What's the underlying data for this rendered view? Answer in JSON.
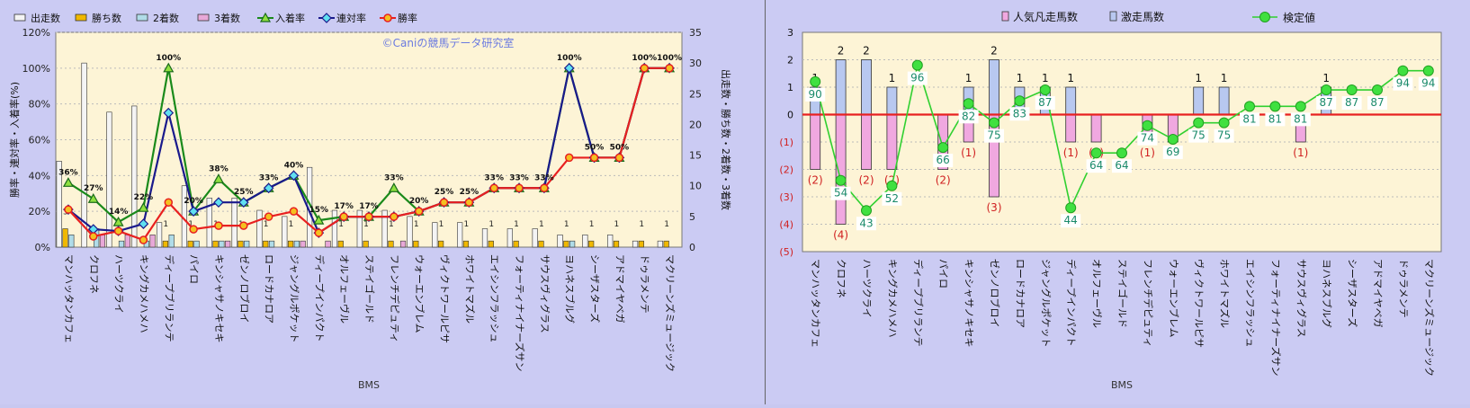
{
  "chart_data": [
    {
      "type": "bar+line",
      "title": "",
      "watermark": "©Caniの競馬データ研究室",
      "xlabel": "BMS",
      "ylabel_left": "勝率・連対率・入着率(%)",
      "ylabel_right": "出走数・勝ち数・2着数・3着数",
      "ylim_left": [
        0,
        120
      ],
      "ylim_right": [
        0,
        35
      ],
      "yticks_left": [
        "0%",
        "20%",
        "40%",
        "60%",
        "80%",
        "100%",
        "120%"
      ],
      "yticks_right": [
        "0",
        "5",
        "10",
        "15",
        "20",
        "25",
        "30",
        "35"
      ],
      "legend_position": "top",
      "categories": [
        "マンハッタンカフェ",
        "クロフネ",
        "ハーツクライ",
        "キングカメハメハ",
        "ディープブリランテ",
        "パイロ",
        "キンシャサノキセキ",
        "ゼンノロブロイ",
        "ロードカナロア",
        "ジャングルポケット",
        "ディープインパクト",
        "オルフェーヴル",
        "ステイゴールド",
        "フレンチデピュティ",
        "ウォーエンブレム",
        "ヴィクトワールピサ",
        "ホワイトマズル",
        "エイシンフラッシュ",
        "フォーティナイナーズサン",
        "サウスヴィグラス",
        "ヨハネスブルグ",
        "シーザスターズ",
        "アドマイヤベガ",
        "ドゥラメンテ",
        "マクリーンズミュージック"
      ],
      "bar_series": [
        {
          "name": "出走数",
          "color": "#f4f4f4",
          "values": [
            14,
            30,
            22,
            23,
            4,
            10,
            8,
            8,
            6,
            5,
            13,
            6,
            6,
            6,
            5,
            4,
            4,
            3,
            3,
            3,
            2,
            2,
            2,
            1,
            1
          ]
        },
        {
          "name": "勝ち数",
          "color": "#f0b800",
          "values": [
            3,
            0,
            0,
            0,
            1,
            1,
            1,
            1,
            1,
            1,
            0,
            1,
            1,
            1,
            1,
            1,
            1,
            1,
            1,
            1,
            1,
            1,
            1,
            1,
            1
          ]
        },
        {
          "name": "2着数",
          "color": "#b0dce8",
          "values": [
            2,
            3,
            1,
            1,
            2,
            1,
            1,
            1,
            1,
            1,
            0,
            0,
            0,
            0,
            0,
            0,
            0,
            0,
            0,
            0,
            1,
            0,
            0,
            0,
            0
          ]
        },
        {
          "name": "3着数",
          "color": "#e8a8d8",
          "values": [
            0,
            2,
            2,
            2,
            0,
            0,
            1,
            0,
            0,
            1,
            1,
            0,
            0,
            1,
            0,
            0,
            0,
            0,
            0,
            0,
            0,
            0,
            0,
            0,
            0
          ]
        }
      ],
      "line_series": [
        {
          "name": "入着率",
          "color": "#1a8a1a",
          "marker": "triangle",
          "values": [
            36,
            27,
            14,
            22,
            100,
            20,
            38,
            25,
            33,
            40,
            15,
            17,
            17,
            33,
            20,
            25,
            25,
            33,
            33,
            33,
            100,
            50,
            50,
            100,
            100
          ]
        },
        {
          "name": "連対率",
          "color": "#1a1a8c",
          "marker": "diamond",
          "values": [
            21,
            10,
            9,
            13,
            75,
            20,
            25,
            25,
            33,
            40,
            8,
            17,
            17,
            17,
            20,
            25,
            25,
            33,
            33,
            33,
            100,
            50,
            50,
            100,
            100
          ]
        },
        {
          "name": "勝率",
          "color": "#e82020",
          "marker": "circle",
          "values": [
            21,
            6,
            9,
            4,
            25,
            10,
            12,
            12,
            17,
            20,
            8,
            17,
            17,
            17,
            20,
            25,
            25,
            33,
            33,
            33,
            50,
            50,
            50,
            100,
            100
          ]
        }
      ],
      "data_labels_top": [
        "36%",
        "27%",
        "14%",
        "22%",
        "100%",
        "20%",
        "38%",
        "25%",
        "33%",
        "40%",
        "15%",
        "17%",
        "17%",
        "33%",
        "20%",
        "25%",
        "25%",
        "33%",
        "33%",
        "33%",
        "100%",
        "50%",
        "50%",
        "100%",
        "100%"
      ],
      "data_labels_wins": [
        "3",
        "",
        "",
        "",
        "1",
        "1",
        "1",
        "1",
        "1",
        "1",
        "",
        "1",
        "1",
        "1",
        "1",
        "1",
        "1",
        "1",
        "1",
        "1",
        "1",
        "1",
        "1",
        "1",
        "1"
      ]
    },
    {
      "type": "bar+line",
      "title": "",
      "xlabel": "BMS",
      "ylim": [
        -5,
        3
      ],
      "yticks": [
        "(5)",
        "(4)",
        "(3)",
        "(2)",
        "(1)",
        "0",
        "1",
        "2",
        "3"
      ],
      "legend_position": "top",
      "categories": [
        "マンハッタンカフェ",
        "クロフネ",
        "ハーツクライ",
        "キングカメハメハ",
        "ディープブリランテ",
        "パイロ",
        "キンシャサノキセキ",
        "ゼンノロブロイ",
        "ロードカナロア",
        "ジャングルポケット",
        "ディープインパクト",
        "オルフェーヴル",
        "ステイゴールド",
        "フレンチデピュティ",
        "ウォーエンブレム",
        "ヴィクトワールピサ",
        "ホワイトマズル",
        "エイシンフラッシュ",
        "フォーティナイナーズサン",
        "サウスヴィグラス",
        "ヨハネスブルグ",
        "シーザスターズ",
        "アドマイヤベガ",
        "ドゥラメンテ",
        "マクリーンズミュージック"
      ],
      "bar_series": [
        {
          "name": "人気凡走馬数",
          "color": "#f0a8e0",
          "values": [
            -2,
            -4,
            -2,
            -2,
            0,
            -2,
            -1,
            -3,
            0,
            0,
            -1,
            -1,
            0,
            -1,
            -1,
            0,
            0,
            0,
            0,
            -1,
            0,
            0,
            0,
            0,
            0
          ]
        },
        {
          "name": "激走馬数",
          "color": "#b8c8f0",
          "values": [
            1,
            2,
            2,
            1,
            0,
            0,
            1,
            2,
            1,
            1,
            1,
            0,
            0,
            0,
            0,
            1,
            1,
            0,
            0,
            0,
            1,
            0,
            0,
            0,
            0
          ]
        }
      ],
      "line_series": [
        {
          "name": "検定値",
          "color": "#30d030",
          "marker": "circle",
          "values": [
            90,
            54,
            43,
            52,
            96,
            66,
            82,
            75,
            83,
            87,
            44,
            64,
            64,
            74,
            69,
            75,
            75,
            81,
            81,
            81,
            87,
            87,
            87,
            94,
            94
          ]
        }
      ],
      "labels_positive": [
        "1",
        "2",
        "2",
        "1",
        "",
        "",
        "1",
        "2",
        "1",
        "1",
        "1",
        "",
        "",
        "",
        "",
        "1",
        "1",
        "",
        "",
        "",
        "1",
        "",
        "",
        "",
        ""
      ],
      "labels_negative": [
        "(2)",
        "(4)",
        "(2)",
        "(2)",
        "",
        "(2)",
        "(1)",
        "(3)",
        "",
        "",
        "(1)",
        "(1)",
        "",
        "(1)",
        "(1)",
        "",
        "",
        "",
        "",
        "(1)",
        "",
        "",
        "",
        "",
        ""
      ]
    }
  ]
}
